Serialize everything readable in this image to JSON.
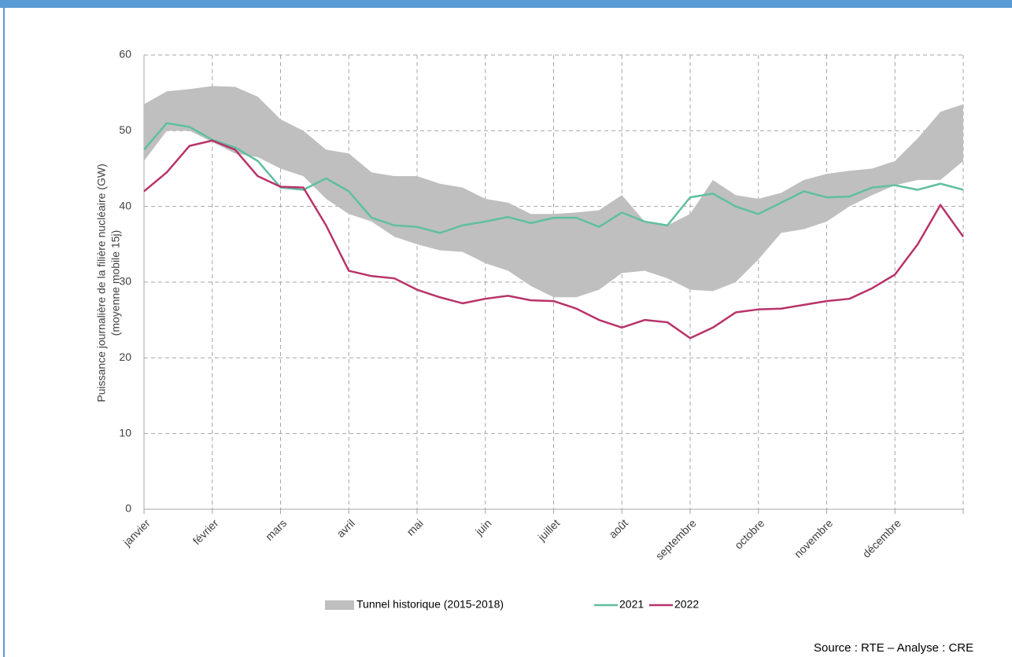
{
  "chart_data": {
    "type": "line",
    "ylabel": [
      "Puissance journalière de la filière nucléaire (GW)",
      "(moyenne mobile 15j)"
    ],
    "source": "Source : RTE – Analyse : CRE",
    "categories": [
      "janvier",
      null,
      null,
      "février",
      null,
      null,
      "mars",
      null,
      null,
      "avril",
      null,
      null,
      "mai",
      null,
      null,
      "juin",
      null,
      null,
      "juillet",
      null,
      null,
      "août",
      null,
      null,
      "septembre",
      null,
      null,
      "octobre",
      null,
      null,
      "novembre",
      null,
      null,
      "décembre",
      null,
      null,
      null
    ],
    "ylim": [
      0,
      60
    ],
    "yticks": [
      0,
      10,
      20,
      30,
      40,
      50,
      60
    ],
    "grid": true,
    "series": [
      {
        "name": "Tunnel historique (2015-2018)",
        "color": "#bfbfbf",
        "band": true,
        "high": [
          53.5,
          55.2,
          55.5,
          55.9,
          55.8,
          54.5,
          51.5,
          50,
          47.5,
          47,
          44.5,
          44,
          44,
          43,
          42.5,
          41,
          40.5,
          39,
          39,
          39.2,
          39.5,
          41.5,
          38,
          37.5,
          39,
          43.5,
          41.5,
          41,
          41.8,
          43.5,
          44.3,
          44.7,
          45,
          46,
          49,
          52.5,
          53.5
        ],
        "low": [
          46,
          50,
          50,
          48.5,
          47,
          46.5,
          45,
          44,
          41,
          39,
          38,
          36,
          35,
          34.2,
          34,
          32.5,
          31.5,
          29.5,
          28,
          28,
          29,
          31.2,
          31.5,
          30.5,
          29,
          28.8,
          30,
          33,
          36.5,
          37,
          38,
          40,
          41.5,
          42.8,
          43.5,
          43.5,
          46
        ]
      },
      {
        "name": "2021",
        "color": "#5fbf9f",
        "values": [
          47.5,
          51,
          50.5,
          48.8,
          47.8,
          46,
          42.5,
          42.2,
          43.7,
          42,
          38.5,
          37.5,
          37.3,
          36.5,
          37.5,
          38,
          38.6,
          37.8,
          38.5,
          38.5,
          37.3,
          39.2,
          38,
          37.5,
          41.2,
          41.7,
          40,
          39,
          40.5,
          42,
          41.2,
          41.3,
          42.5,
          42.8,
          42.2,
          43,
          42.2
        ]
      },
      {
        "name": "2022",
        "color": "#b8336a",
        "values": [
          42,
          44.5,
          48,
          48.7,
          47.5,
          44,
          42.6,
          42.5,
          37.5,
          31.5,
          30.8,
          30.5,
          29,
          28,
          27.2,
          27.8,
          28.2,
          27.6,
          27.5,
          26.5,
          25,
          24,
          25,
          24.7,
          22.6,
          24,
          26,
          26.4,
          26.5,
          27,
          27.5,
          27.8,
          29.2,
          31,
          35,
          40.2,
          36
        ]
      }
    ]
  }
}
